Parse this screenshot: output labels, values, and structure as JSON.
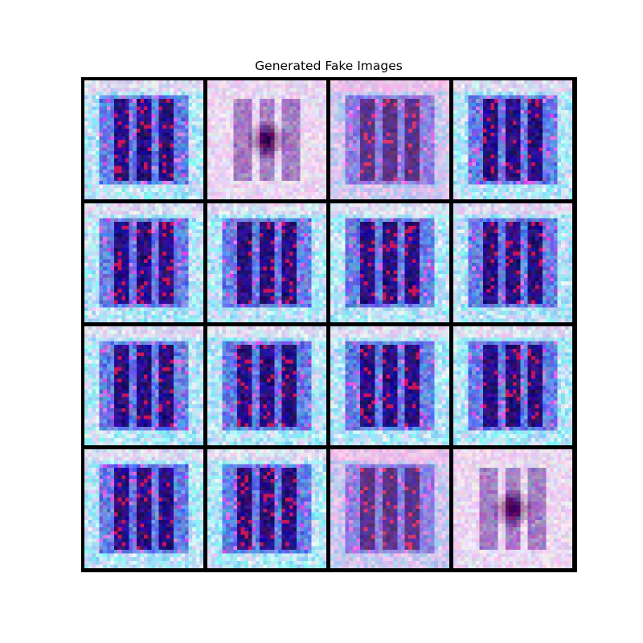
{
  "figure": {
    "title": "Generated Fake Images"
  },
  "grid": {
    "rows": 4,
    "cols": 4,
    "border_color": "#000000",
    "tiles": [
      {
        "variant": "stripes"
      },
      {
        "variant": "faded"
      },
      {
        "variant": "stripes-soft"
      },
      {
        "variant": "stripes"
      },
      {
        "variant": "stripes"
      },
      {
        "variant": "stripes"
      },
      {
        "variant": "stripes"
      },
      {
        "variant": "stripes"
      },
      {
        "variant": "stripes"
      },
      {
        "variant": "stripes"
      },
      {
        "variant": "stripes"
      },
      {
        "variant": "stripes"
      },
      {
        "variant": "stripes"
      },
      {
        "variant": "stripes"
      },
      {
        "variant": "stripes-soft"
      },
      {
        "variant": "faded"
      }
    ]
  }
}
